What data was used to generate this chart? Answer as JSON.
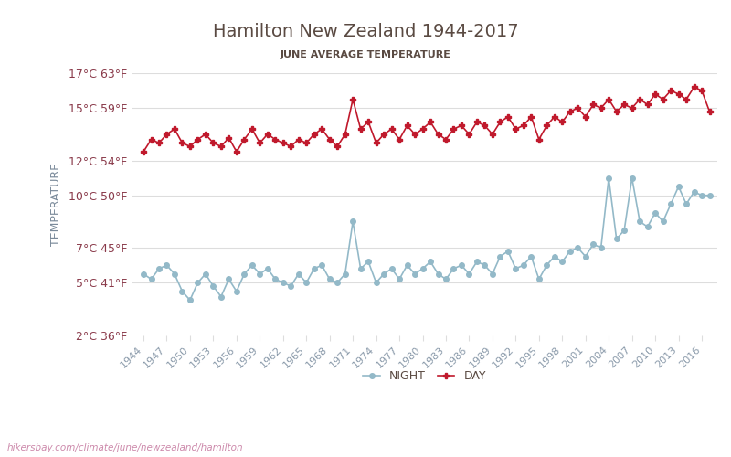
{
  "title": "Hamilton New Zealand 1944-2017",
  "subtitle": "JUNE AVERAGE TEMPERATURE",
  "xlabel": "",
  "ylabel": "TEMPERATURE",
  "yticks_c": [
    2,
    5,
    7,
    10,
    12,
    15,
    17
  ],
  "yticks_f": [
    36,
    41,
    45,
    50,
    54,
    59,
    63
  ],
  "years": [
    1944,
    1945,
    1946,
    1947,
    1948,
    1949,
    1950,
    1951,
    1952,
    1953,
    1954,
    1955,
    1956,
    1957,
    1958,
    1959,
    1960,
    1961,
    1962,
    1963,
    1964,
    1965,
    1966,
    1967,
    1968,
    1969,
    1970,
    1971,
    1972,
    1973,
    1974,
    1975,
    1976,
    1977,
    1978,
    1979,
    1980,
    1981,
    1982,
    1983,
    1984,
    1985,
    1986,
    1987,
    1988,
    1989,
    1990,
    1991,
    1992,
    1993,
    1994,
    1995,
    1996,
    1997,
    1998,
    1999,
    2000,
    2001,
    2002,
    2003,
    2004,
    2005,
    2006,
    2007,
    2008,
    2009,
    2010,
    2011,
    2012,
    2013,
    2014,
    2015,
    2016,
    2017
  ],
  "day_temps": [
    12.5,
    13.2,
    13.0,
    13.5,
    13.8,
    13.0,
    12.8,
    13.2,
    13.5,
    13.0,
    12.8,
    13.3,
    12.5,
    13.2,
    13.8,
    13.0,
    13.5,
    13.2,
    13.0,
    12.8,
    13.2,
    13.0,
    13.5,
    13.8,
    13.2,
    12.8,
    13.5,
    15.5,
    13.8,
    14.2,
    13.0,
    13.5,
    13.8,
    13.2,
    14.0,
    13.5,
    13.8,
    14.2,
    13.5,
    13.2,
    13.8,
    14.0,
    13.5,
    14.2,
    14.0,
    13.5,
    14.2,
    14.5,
    13.8,
    14.0,
    14.5,
    13.2,
    14.0,
    14.5,
    14.2,
    14.8,
    15.0,
    14.5,
    15.2,
    15.0,
    15.5,
    14.8,
    15.2,
    15.0,
    15.5,
    15.2,
    15.8,
    15.5,
    16.0,
    15.8,
    15.5,
    16.2,
    16.0,
    14.8
  ],
  "night_temps": [
    5.5,
    5.2,
    5.8,
    6.0,
    5.5,
    4.5,
    4.0,
    5.0,
    5.5,
    4.8,
    4.2,
    5.2,
    4.5,
    5.5,
    6.0,
    5.5,
    5.8,
    5.2,
    5.0,
    4.8,
    5.5,
    5.0,
    5.8,
    6.0,
    5.2,
    5.0,
    5.5,
    8.5,
    5.8,
    6.2,
    5.0,
    5.5,
    5.8,
    5.2,
    6.0,
    5.5,
    5.8,
    6.2,
    5.5,
    5.2,
    5.8,
    6.0,
    5.5,
    6.2,
    6.0,
    5.5,
    6.5,
    6.8,
    5.8,
    6.0,
    6.5,
    5.2,
    6.0,
    6.5,
    6.2,
    6.8,
    7.0,
    6.5,
    7.2,
    7.0,
    11.0,
    7.5,
    8.0,
    11.0,
    8.5,
    8.2,
    9.0,
    8.5,
    9.5,
    10.5,
    9.5,
    10.2,
    10.0,
    10.0
  ],
  "day_color": "#c0192c",
  "night_color": "#93b9c8",
  "night_marker": "o",
  "day_marker": "P",
  "background_color": "#ffffff",
  "grid_color": "#dddddd",
  "title_color": "#5a4a42",
  "subtitle_color": "#5a4a42",
  "tick_label_color": "#8a3a4a",
  "ylabel_color": "#7a8a9a",
  "xtick_color": "#8a9aaa",
  "watermark": "hikersbay.com/climate/june/newzealand/hamilton",
  "watermark_color": "#cc88aa",
  "legend_night": "NIGHT",
  "legend_day": "DAY",
  "ymin": 2,
  "ymax": 17
}
